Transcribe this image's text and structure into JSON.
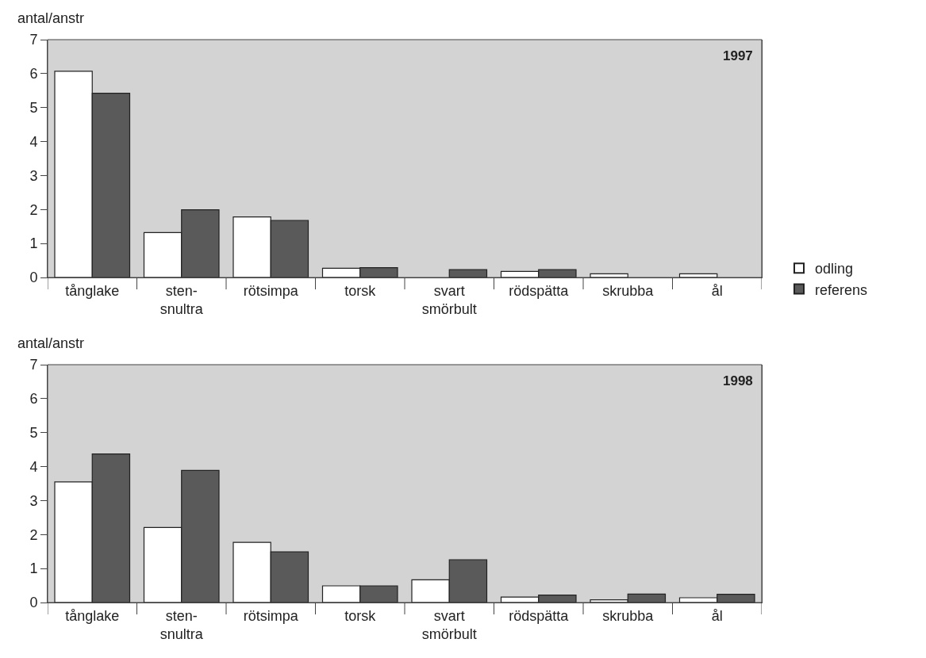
{
  "chart_data": [
    {
      "type": "bar",
      "ylabel": "antal/anstr",
      "annotations": [
        "1997"
      ],
      "categories": [
        "tånglake",
        "sten-\nsnultra",
        "rötsimpa",
        "torsk",
        "svart\nsmörbult",
        "rödspätta",
        "skrubba",
        "ål"
      ],
      "series": [
        {
          "name": "odling",
          "color": "#ffffff",
          "values": [
            6.07,
            1.32,
            1.78,
            0.27,
            0,
            0.18,
            0.11,
            0.11
          ]
        },
        {
          "name": "referens",
          "color": "#5a5a5a",
          "values": [
            5.42,
            1.99,
            1.68,
            0.29,
            0.23,
            0.23,
            0,
            0
          ]
        }
      ],
      "ylim": [
        0,
        7
      ],
      "yticks": [
        0,
        1,
        2,
        3,
        4,
        5,
        6,
        7
      ],
      "grid": false,
      "legend": "right"
    },
    {
      "type": "bar",
      "ylabel": "antal/anstr",
      "annotations": [
        "1998"
      ],
      "categories": [
        "tånglake",
        "sten-\nsnultra",
        "rötsimpa",
        "torsk",
        "svart\nsmörbult",
        "rödspätta",
        "skrubba",
        "ål"
      ],
      "series": [
        {
          "color": "#ffffff",
          "values": [
            3.55,
            2.21,
            1.77,
            0.49,
            0.67,
            0.16,
            0.08,
            0.14
          ]
        },
        {
          "color": "#5a5a5a",
          "values": [
            4.37,
            3.89,
            1.49,
            0.49,
            1.26,
            0.22,
            0.25,
            0.24
          ]
        }
      ],
      "ylim": [
        0,
        7
      ],
      "yticks": [
        0,
        1,
        2,
        3,
        4,
        5,
        6,
        7
      ],
      "grid": false
    }
  ]
}
